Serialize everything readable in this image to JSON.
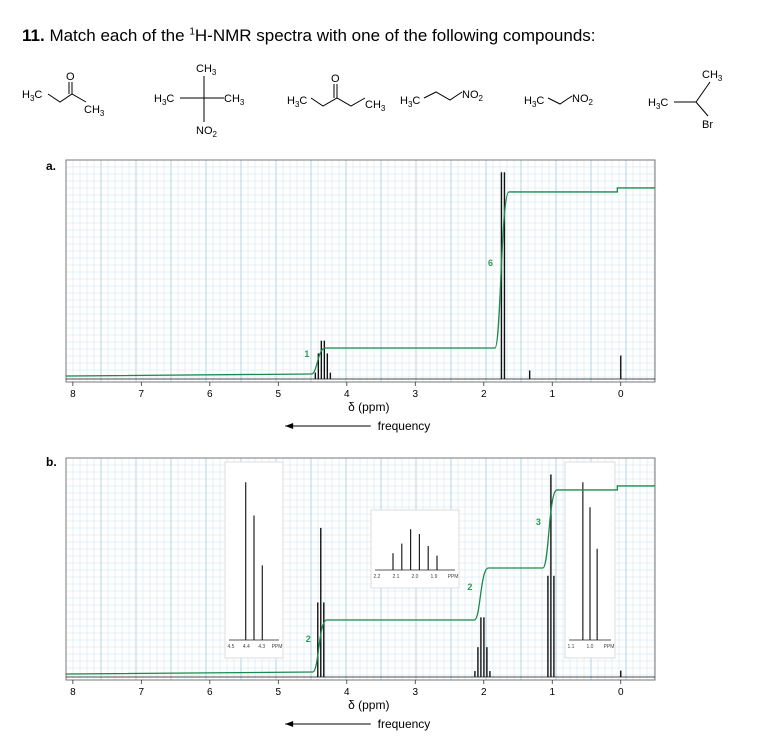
{
  "question": {
    "number": "11.",
    "text_before": "Match each of the ",
    "superscript": "1",
    "text_after": "H-NMR spectra with one of the following compounds:"
  },
  "compounds": [
    {
      "labels": [
        "H3C",
        "O",
        "CH3"
      ]
    },
    {
      "labels": [
        "CH3",
        "H3C",
        "CH3",
        "NO2"
      ]
    },
    {
      "labels": [
        "H3C",
        "O",
        "CH3"
      ]
    },
    {
      "labels": [
        "H3C",
        "NO2"
      ]
    },
    {
      "labels": [
        "H3C",
        "NO2"
      ]
    },
    {
      "labels": [
        "CH3",
        "H3C",
        "Br"
      ]
    }
  ],
  "colors": {
    "spectrum": "#111111",
    "integral": "#1a8a4a",
    "grid": "#c9e3ee",
    "integral_label": "#2e9b4e"
  },
  "chart_data": [
    {
      "panel_label": "a.",
      "type": "line",
      "x_axis": {
        "ticks": [
          8,
          7,
          6,
          5,
          4,
          3,
          2,
          1,
          0
        ],
        "label": "δ (ppm)",
        "direction_label": "frequency",
        "xlim": [
          8.1,
          -0.5
        ]
      },
      "peaks": [
        {
          "x": 4.35,
          "height": 0.18,
          "type": "multiplet"
        },
        {
          "x": 1.72,
          "height": 0.97,
          "type": "doublet"
        },
        {
          "x": 1.33,
          "height": 0.04,
          "type": "singlet"
        },
        {
          "x": 0.0,
          "height": 0.11,
          "type": "singlet"
        }
      ],
      "integrals": [
        {
          "x": 4.4,
          "value": 1,
          "label": "1"
        },
        {
          "x": 1.72,
          "value": 6,
          "label": "6"
        }
      ]
    },
    {
      "panel_label": "b.",
      "type": "line",
      "x_axis": {
        "ticks": [
          8,
          7,
          6,
          5,
          4,
          3,
          2,
          1,
          0
        ],
        "label": "δ (ppm)",
        "direction_label": "frequency",
        "xlim": [
          8.1,
          -0.5
        ]
      },
      "peaks": [
        {
          "x": 4.38,
          "height": 0.7,
          "type": "triplet"
        },
        {
          "x": 2.02,
          "height": 0.28,
          "type": "sextet"
        },
        {
          "x": 1.02,
          "height": 0.95,
          "type": "triplet"
        },
        {
          "x": 0.0,
          "height": 0.03,
          "type": "singlet"
        }
      ],
      "integrals": [
        {
          "x": 4.38,
          "value": 2,
          "label": "2"
        },
        {
          "x": 2.02,
          "value": 2,
          "label": "2"
        },
        {
          "x": 1.02,
          "value": 3,
          "label": "3"
        }
      ],
      "insets": [
        {
          "ticks": [
            "4.5",
            "4.4",
            "4.3",
            "PPM"
          ]
        },
        {
          "ticks": [
            "2.2",
            "2.1",
            "2.0",
            "1.9",
            "PPM"
          ]
        },
        {
          "ticks": [
            "1.1",
            "1.0",
            "PPM"
          ]
        }
      ]
    }
  ]
}
